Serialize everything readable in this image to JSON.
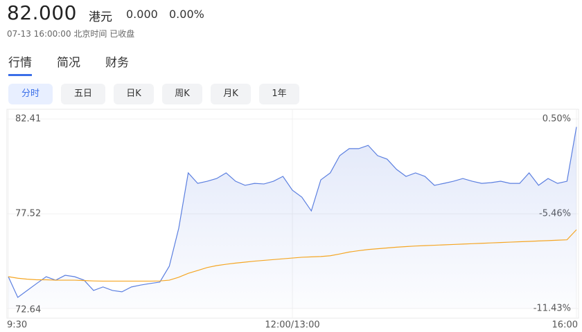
{
  "quote": {
    "price": "82.000",
    "currency": "港元",
    "change": "0.000",
    "change_pct": "0.00%",
    "time": "07-13 16:00:00 北京时间 已收盘"
  },
  "tabs": [
    "行情",
    "简况",
    "财务"
  ],
  "periods": [
    "分时",
    "五日",
    "日K",
    "周K",
    "月K",
    "1年"
  ],
  "chart_data": {
    "type": "line",
    "x": [
      0,
      1,
      2,
      3,
      4,
      5,
      6,
      7,
      8,
      9,
      10,
      11,
      12,
      13,
      14,
      15,
      16,
      17,
      18,
      19,
      20,
      21,
      22,
      23,
      24,
      25,
      26,
      27,
      28,
      29,
      30,
      31,
      32,
      33,
      34,
      35,
      36,
      37,
      38,
      39,
      40,
      41,
      42,
      43,
      44,
      45,
      46,
      47,
      48,
      49,
      50,
      51,
      52,
      53,
      54,
      55,
      56,
      57,
      58,
      59,
      60
    ],
    "xlim": [
      0,
      60
    ],
    "xticks": [
      {
        "value": 0,
        "label": "9:30"
      },
      {
        "value": 30,
        "label": "12:00/13:00"
      },
      {
        "value": 60,
        "label": "16:00"
      }
    ],
    "ylim": [
      72.64,
      82.41
    ],
    "yticks": [
      72.64,
      77.52,
      82.41
    ],
    "y2lim": [
      -11.43,
      0.5
    ],
    "y2ticks": [
      {
        "value": -11.43,
        "label": "-11.43%"
      },
      {
        "value": -5.46,
        "label": "-5.46%"
      },
      {
        "value": 0.5,
        "label": "0.50%"
      }
    ],
    "grid": true,
    "series": [
      {
        "color": "#5b7fe0",
        "values": [
          74.28,
          73.21,
          73.57,
          73.93,
          74.28,
          74.1,
          74.35,
          74.28,
          74.1,
          73.57,
          73.75,
          73.57,
          73.5,
          73.75,
          73.85,
          73.93,
          74.0,
          74.82,
          76.78,
          79.63,
          79.09,
          79.2,
          79.34,
          79.63,
          79.2,
          78.99,
          79.09,
          79.06,
          79.2,
          79.45,
          78.74,
          78.38,
          77.67,
          79.27,
          79.63,
          80.52,
          80.88,
          80.88,
          81.05,
          80.52,
          80.34,
          79.81,
          79.45,
          79.63,
          79.45,
          78.99,
          79.09,
          79.2,
          79.34,
          79.2,
          79.09,
          79.13,
          79.2,
          79.09,
          79.09,
          79.63,
          78.99,
          79.34,
          79.09,
          79.2,
          82.0
        ]
      },
      {
        "color": "#f5a623",
        "values": [
          74.28,
          74.2,
          74.15,
          74.12,
          74.12,
          74.1,
          74.1,
          74.1,
          74.08,
          74.06,
          74.05,
          74.05,
          74.05,
          74.05,
          74.05,
          74.05,
          74.06,
          74.1,
          74.25,
          74.45,
          74.6,
          74.75,
          74.85,
          74.92,
          74.98,
          75.03,
          75.08,
          75.12,
          75.16,
          75.2,
          75.24,
          75.28,
          75.3,
          75.32,
          75.36,
          75.45,
          75.55,
          75.62,
          75.68,
          75.72,
          75.76,
          75.8,
          75.83,
          75.86,
          75.88,
          75.9,
          75.92,
          75.94,
          75.96,
          75.98,
          76.0,
          76.02,
          76.04,
          76.06,
          76.08,
          76.1,
          76.12,
          76.14,
          76.16,
          76.18,
          76.7
        ]
      }
    ]
  }
}
